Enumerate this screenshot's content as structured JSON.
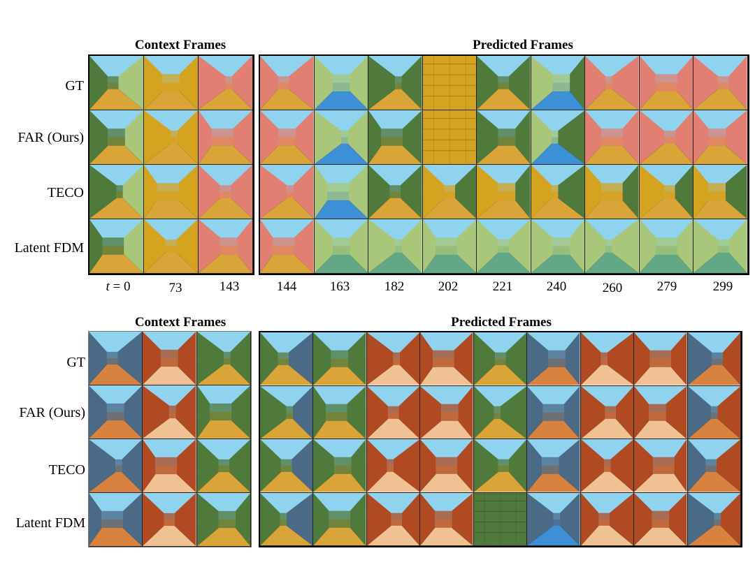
{
  "top": {
    "context_header": "Context Frames",
    "predicted_header": "Predicted Frames",
    "rows": [
      "GT",
      "FAR (Ours)",
      "TECO",
      "Latent FDM"
    ],
    "timestep_prefix": "t = 0",
    "timesteps": [
      "73",
      "143",
      "144",
      "163",
      "182",
      "202",
      "221",
      "240",
      "260",
      "279",
      "299"
    ]
  },
  "bottom": {
    "context_header": "Context Frames",
    "predicted_header": "Predicted Frames",
    "rows": [
      "GT",
      "FAR (Ours)",
      "TECO",
      "Latent FDM"
    ]
  },
  "palette": {
    "sky": "#8fd3ef",
    "sand_floor": "#d9a538",
    "green_wall": "#4f7a3c",
    "light_green_wall": "#a8c77a",
    "yellow_brick": "#d4a320",
    "pink_wall": "#e07f72",
    "water": "#3d8fd6",
    "slate_wall": "#4b6a86",
    "orange_floor": "#d8823f",
    "red_brick": "#b04a22",
    "peach_floor": "#f0c293",
    "teal_floor": "#62a887"
  }
}
